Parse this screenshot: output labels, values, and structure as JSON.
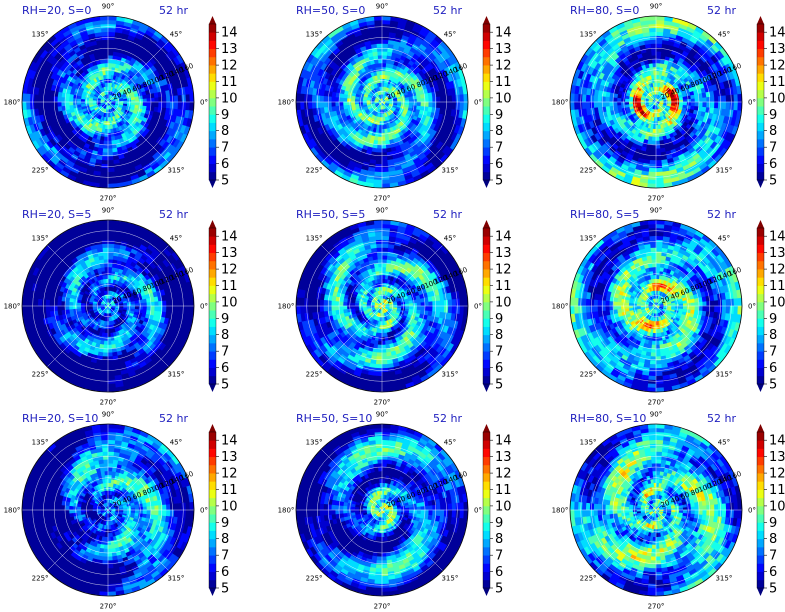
{
  "figure": {
    "colormap": "jet",
    "title_color": "#1f1fbf",
    "grid_color": "#ffffff"
  },
  "chart_data": [
    {
      "type": "heatmap",
      "projection": "polar",
      "title": "RH=20, S=0",
      "time_label": "52 hr",
      "angle_labels": [
        "90°",
        "45°",
        "0°",
        "315°",
        "270°",
        "225°",
        "180°",
        "135°"
      ],
      "radial_labels": [
        "20",
        "40",
        "60",
        "80",
        "100",
        "120",
        "140",
        "160"
      ],
      "colorbar_ticks": [
        "5",
        "6",
        "7",
        "8",
        "9",
        "10",
        "11",
        "12",
        "13",
        "14"
      ],
      "color_range": [
        5,
        14.5
      ],
      "pattern": {
        "base": 6.8,
        "ring_amp": 1.2,
        "spiral_amp": 1.3,
        "spiral_k": 2.2,
        "arms": 3,
        "center": 9,
        "eyewall": 0,
        "speck": 1.0,
        "dark_sector": 0,
        "dark_edge": 0.6,
        "seed": 11
      }
    },
    {
      "type": "heatmap",
      "projection": "polar",
      "title": "RH=50, S=0",
      "time_label": "52 hr",
      "angle_labels": [
        "90°",
        "45°",
        "0°",
        "315°",
        "270°",
        "225°",
        "180°",
        "135°"
      ],
      "radial_labels": [
        "20",
        "40",
        "60",
        "80",
        "100",
        "120",
        "140",
        "160"
      ],
      "colorbar_ticks": [
        "5",
        "6",
        "7",
        "8",
        "9",
        "10",
        "11",
        "12",
        "13",
        "14"
      ],
      "color_range": [
        5,
        14.5
      ],
      "pattern": {
        "base": 7.2,
        "ring_amp": 1.1,
        "spiral_amp": 1.4,
        "spiral_k": 2.6,
        "arms": 3,
        "center": 10,
        "eyewall": 0.8,
        "speck": 0.8,
        "dark_sector": 0,
        "dark_edge": 0.3,
        "seed": 23
      }
    },
    {
      "type": "heatmap",
      "projection": "polar",
      "title": "RH=80, S=0",
      "time_label": "52 hr",
      "angle_labels": [
        "90°",
        "45°",
        "0°",
        "315°",
        "270°",
        "225°",
        "180°",
        "135°"
      ],
      "radial_labels": [
        "20",
        "40",
        "60",
        "80",
        "100",
        "120",
        "140",
        "160"
      ],
      "colorbar_ticks": [
        "5",
        "6",
        "7",
        "8",
        "9",
        "10",
        "11",
        "12",
        "13",
        "14"
      ],
      "color_range": [
        5,
        14.5
      ],
      "pattern": {
        "base": 7.4,
        "ring_amp": 1.0,
        "spiral_amp": 1.5,
        "spiral_k": 2.0,
        "arms": 2,
        "center": 9,
        "eyewall": 4.5,
        "speck": 1.2,
        "dark_sector": 0,
        "dark_edge": 0.2,
        "seed": 37
      }
    },
    {
      "type": "heatmap",
      "projection": "polar",
      "title": "RH=20, S=5",
      "time_label": "52 hr",
      "angle_labels": [
        "90°",
        "45°",
        "0°",
        "315°",
        "270°",
        "225°",
        "180°",
        "135°"
      ],
      "radial_labels": [
        "20",
        "40",
        "60",
        "80",
        "100",
        "120",
        "140",
        "160"
      ],
      "colorbar_ticks": [
        "5",
        "6",
        "7",
        "8",
        "9",
        "10",
        "11",
        "12",
        "13",
        "14"
      ],
      "color_range": [
        5,
        14.5
      ],
      "pattern": {
        "base": 6.6,
        "ring_amp": 1.3,
        "spiral_amp": 1.3,
        "spiral_k": 2.4,
        "arms": 3,
        "center": 8.6,
        "eyewall": 0,
        "speck": 0.9,
        "dark_sector": 0.5,
        "dark_edge": 1.0,
        "seed": 41
      }
    },
    {
      "type": "heatmap",
      "projection": "polar",
      "title": "RH=50, S=5",
      "time_label": "52 hr",
      "angle_labels": [
        "90°",
        "45°",
        "0°",
        "315°",
        "270°",
        "225°",
        "180°",
        "135°"
      ],
      "radial_labels": [
        "20",
        "40",
        "60",
        "80",
        "100",
        "120",
        "140",
        "160"
      ],
      "colorbar_ticks": [
        "5",
        "6",
        "7",
        "8",
        "9",
        "10",
        "11",
        "12",
        "13",
        "14"
      ],
      "color_range": [
        5,
        14.5
      ],
      "pattern": {
        "base": 7.3,
        "ring_amp": 1.1,
        "spiral_amp": 1.5,
        "spiral_k": 2.3,
        "arms": 3,
        "center": 10,
        "eyewall": 1.8,
        "speck": 0.9,
        "dark_sector": 0.2,
        "dark_edge": 0.5,
        "seed": 53
      }
    },
    {
      "type": "heatmap",
      "projection": "polar",
      "title": "RH=80, S=5",
      "time_label": "52 hr",
      "angle_labels": [
        "90°",
        "45°",
        "0°",
        "315°",
        "270°",
        "225°",
        "180°",
        "135°"
      ],
      "radial_labels": [
        "20",
        "40",
        "60",
        "80",
        "100",
        "120",
        "140",
        "160"
      ],
      "colorbar_ticks": [
        "5",
        "6",
        "7",
        "8",
        "9",
        "10",
        "11",
        "12",
        "13",
        "14"
      ],
      "color_range": [
        5,
        14.5
      ],
      "pattern": {
        "base": 7.8,
        "ring_amp": 1.0,
        "spiral_amp": 1.4,
        "spiral_k": 2.0,
        "arms": 2,
        "center": 9.5,
        "eyewall": 3.5,
        "speck": 1.1,
        "dark_sector": 0,
        "dark_edge": 0.2,
        "seed": 67
      }
    },
    {
      "type": "heatmap",
      "projection": "polar",
      "title": "RH=20, S=10",
      "time_label": "52 hr",
      "angle_labels": [
        "90°",
        "45°",
        "0°",
        "315°",
        "270°",
        "225°",
        "180°",
        "135°"
      ],
      "radial_labels": [
        "20",
        "40",
        "60",
        "80",
        "100",
        "120",
        "140",
        "160"
      ],
      "colorbar_ticks": [
        "5",
        "6",
        "7",
        "8",
        "9",
        "10",
        "11",
        "12",
        "13",
        "14"
      ],
      "color_range": [
        5,
        14.5
      ],
      "pattern": {
        "base": 7.6,
        "ring_amp": 1.0,
        "spiral_amp": 1.2,
        "spiral_k": 2.0,
        "arms": 3,
        "center": 8,
        "eyewall": 0,
        "speck": 1.0,
        "dark_sector": 2.5,
        "dark_edge": 0.4,
        "seed": 79
      }
    },
    {
      "type": "heatmap",
      "projection": "polar",
      "title": "RH=50, S=10",
      "time_label": "52 hr",
      "angle_labels": [
        "90°",
        "45°",
        "0°",
        "315°",
        "270°",
        "225°",
        "180°",
        "135°"
      ],
      "radial_labels": [
        "20",
        "40",
        "60",
        "80",
        "100",
        "120",
        "140",
        "160"
      ],
      "colorbar_ticks": [
        "5",
        "6",
        "7",
        "8",
        "9",
        "10",
        "11",
        "12",
        "13",
        "14"
      ],
      "color_range": [
        5,
        14.5
      ],
      "pattern": {
        "base": 7.2,
        "ring_amp": 1.1,
        "spiral_amp": 1.6,
        "spiral_k": 1.6,
        "arms": 2,
        "center": 8.5,
        "eyewall": 0.6,
        "speck": 0.9,
        "dark_sector": 0.9,
        "dark_edge": 0.6,
        "seed": 83
      }
    },
    {
      "type": "heatmap",
      "projection": "polar",
      "title": "RH=80, S=10",
      "time_label": "52 hr",
      "angle_labels": [
        "90°",
        "45°",
        "0°",
        "315°",
        "270°",
        "225°",
        "180°",
        "135°"
      ],
      "radial_labels": [
        "20",
        "40",
        "60",
        "80",
        "100",
        "120",
        "140",
        "160"
      ],
      "colorbar_ticks": [
        "5",
        "6",
        "7",
        "8",
        "9",
        "10",
        "11",
        "12",
        "13",
        "14"
      ],
      "color_range": [
        5,
        14.5
      ],
      "pattern": {
        "base": 8.0,
        "ring_amp": 1.0,
        "spiral_amp": 1.5,
        "spiral_k": 1.8,
        "arms": 3,
        "center": 9,
        "eyewall": 2.5,
        "speck": 1.2,
        "dark_sector": 0,
        "dark_edge": 0.1,
        "seed": 97
      }
    }
  ]
}
